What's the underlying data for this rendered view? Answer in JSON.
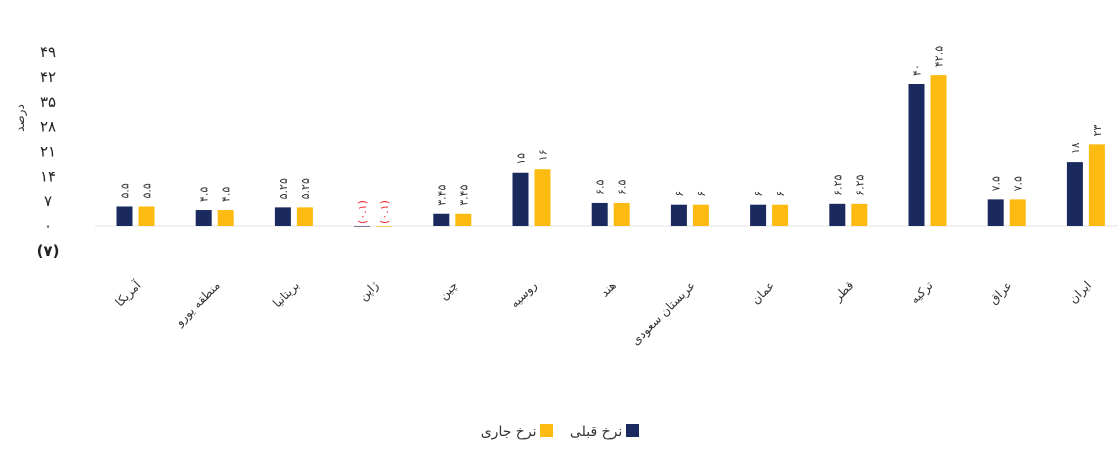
{
  "chart_data": {
    "type": "bar",
    "ylabel": "درصد",
    "yticks": [
      "۴۹",
      "۴۲",
      "۳۵",
      "۲۸",
      "۲۱",
      "۱۴",
      "۷",
      "۰",
      "(۷)"
    ],
    "ytick_values": [
      49,
      42,
      35,
      28,
      21,
      14,
      7,
      0,
      -7
    ],
    "ylim": [
      -7,
      49
    ],
    "categories": [
      "آمریکا",
      "منطقه یورو",
      "بریتانیا",
      "ژاپن",
      "چین",
      "روسیه",
      "هند",
      "عربستان سعودی",
      "عمان",
      "قطر",
      "ترکیه",
      "عراق",
      "ایران"
    ],
    "series": [
      {
        "name": "نرخ قبلی",
        "color": "#1b2a5e",
        "values": [
          5.5,
          4.5,
          5.25,
          -0.1,
          3.45,
          15,
          6.5,
          6,
          6,
          6.25,
          40,
          7.5,
          18
        ],
        "labels": [
          "۵.۵",
          "۴.۵",
          "۵.۲۵",
          "(۰.۱)",
          "۳.۴۵",
          "۱۵",
          "۶.۵",
          "۶",
          "۶",
          "۶.۲۵",
          "۴۰",
          "۷.۵",
          "۱۸"
        ]
      },
      {
        "name": "نرخ جاری",
        "color": "#fdbb12",
        "values": [
          5.5,
          4.5,
          5.25,
          -0.1,
          3.45,
          16,
          6.5,
          6,
          6,
          6.25,
          42.5,
          7.5,
          23
        ],
        "labels": [
          "۵.۵",
          "۴.۵",
          "۵.۲۵",
          "(۰.۱)",
          "۳.۴۵",
          "۱۶",
          "۶.۵",
          "۶",
          "۶",
          "۶.۲۵",
          "۴۲.۵",
          "۷.۵",
          "۲۳"
        ]
      }
    ],
    "negative_color": "#e8262b",
    "legend_position": "bottom",
    "grid": false
  }
}
